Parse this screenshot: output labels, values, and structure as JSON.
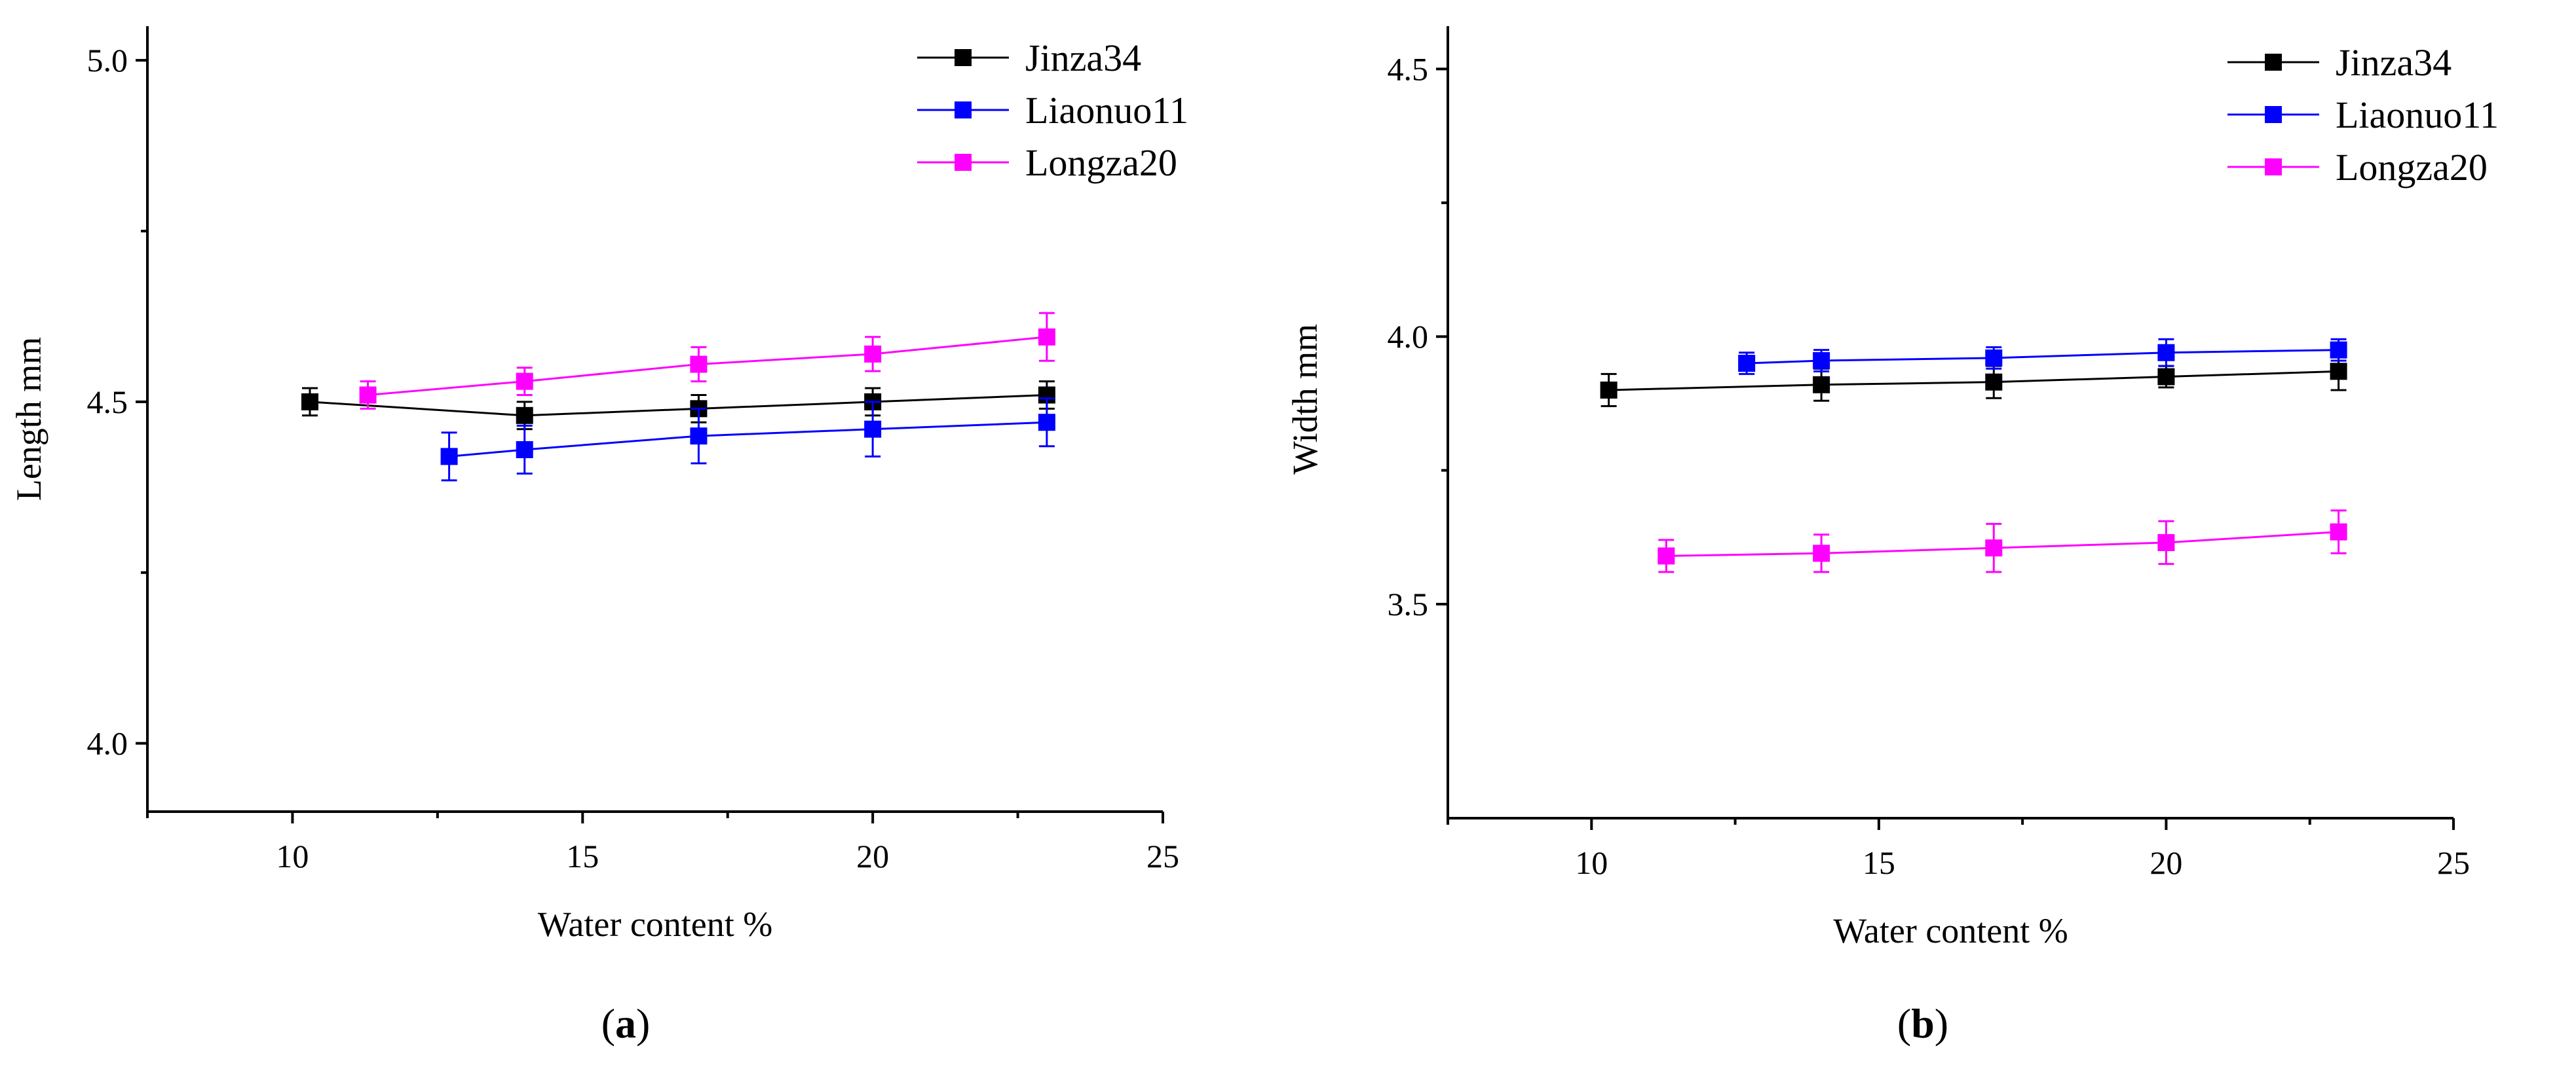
{
  "chart_data": [
    {
      "type": "line",
      "panel_label": "a",
      "xlabel": "Water content  %",
      "ylabel": "Length  mm",
      "xlim": [
        7.5,
        25
      ],
      "ylim": [
        3.9,
        5.05
      ],
      "xticks": [
        10,
        15,
        20,
        25
      ],
      "xtick_labels": [
        "10",
        "15",
        "20",
        "25"
      ],
      "yticks": [
        4.0,
        4.5,
        5.0
      ],
      "ytick_labels": [
        "4.0",
        "4.5",
        "5.0"
      ],
      "legend_position": "top-right",
      "series": [
        {
          "name": "Jinza34",
          "color": "#000000",
          "x": [
            10.3,
            14.0,
            17.0,
            20.0,
            23.0
          ],
          "y": [
            4.5,
            4.48,
            4.49,
            4.5,
            4.51
          ],
          "err": [
            0.02,
            0.02,
            0.02,
            0.02,
            0.02
          ]
        },
        {
          "name": "Liaonuo11",
          "color": "#0000ff",
          "x": [
            12.7,
            14.0,
            17.0,
            20.0,
            23.0
          ],
          "y": [
            4.42,
            4.43,
            4.45,
            4.46,
            4.47
          ],
          "err": [
            0.035,
            0.035,
            0.04,
            0.04,
            0.035
          ]
        },
        {
          "name": "Longza20",
          "color": "#ff00ff",
          "x": [
            11.3,
            14.0,
            17.0,
            20.0,
            23.0
          ],
          "y": [
            4.51,
            4.53,
            4.555,
            4.57,
            4.595
          ],
          "err": [
            0.02,
            0.02,
            0.025,
            0.025,
            0.035
          ]
        }
      ]
    },
    {
      "type": "line",
      "panel_label": "b",
      "xlabel": "Water content  %",
      "ylabel": "Width  mm",
      "xlim": [
        7.5,
        25
      ],
      "ylim": [
        3.1,
        4.58
      ],
      "xticks": [
        10,
        15,
        20,
        25
      ],
      "xtick_labels": [
        "10",
        "15",
        "20",
        "25"
      ],
      "yticks": [
        3.5,
        4.0,
        4.5
      ],
      "ytick_labels": [
        "3.5",
        "4.0",
        "4.5"
      ],
      "legend_position": "top-right",
      "series": [
        {
          "name": "Jinza34",
          "color": "#000000",
          "x": [
            10.3,
            14.0,
            17.0,
            20.0,
            23.0
          ],
          "y": [
            3.9,
            3.91,
            3.915,
            3.925,
            3.935
          ],
          "err": [
            0.03,
            0.03,
            0.03,
            0.02,
            0.035
          ]
        },
        {
          "name": "Liaonuo11",
          "color": "#0000ff",
          "x": [
            12.7,
            14.0,
            17.0,
            20.0,
            23.0
          ],
          "y": [
            3.95,
            3.955,
            3.96,
            3.97,
            3.975
          ],
          "err": [
            0.02,
            0.02,
            0.02,
            0.025,
            0.02
          ]
        },
        {
          "name": "Longza20",
          "color": "#ff00ff",
          "x": [
            11.3,
            14.0,
            17.0,
            20.0,
            23.0
          ],
          "y": [
            3.59,
            3.595,
            3.605,
            3.615,
            3.635
          ],
          "err": [
            0.03,
            0.035,
            0.045,
            0.04,
            0.04
          ]
        }
      ]
    }
  ]
}
